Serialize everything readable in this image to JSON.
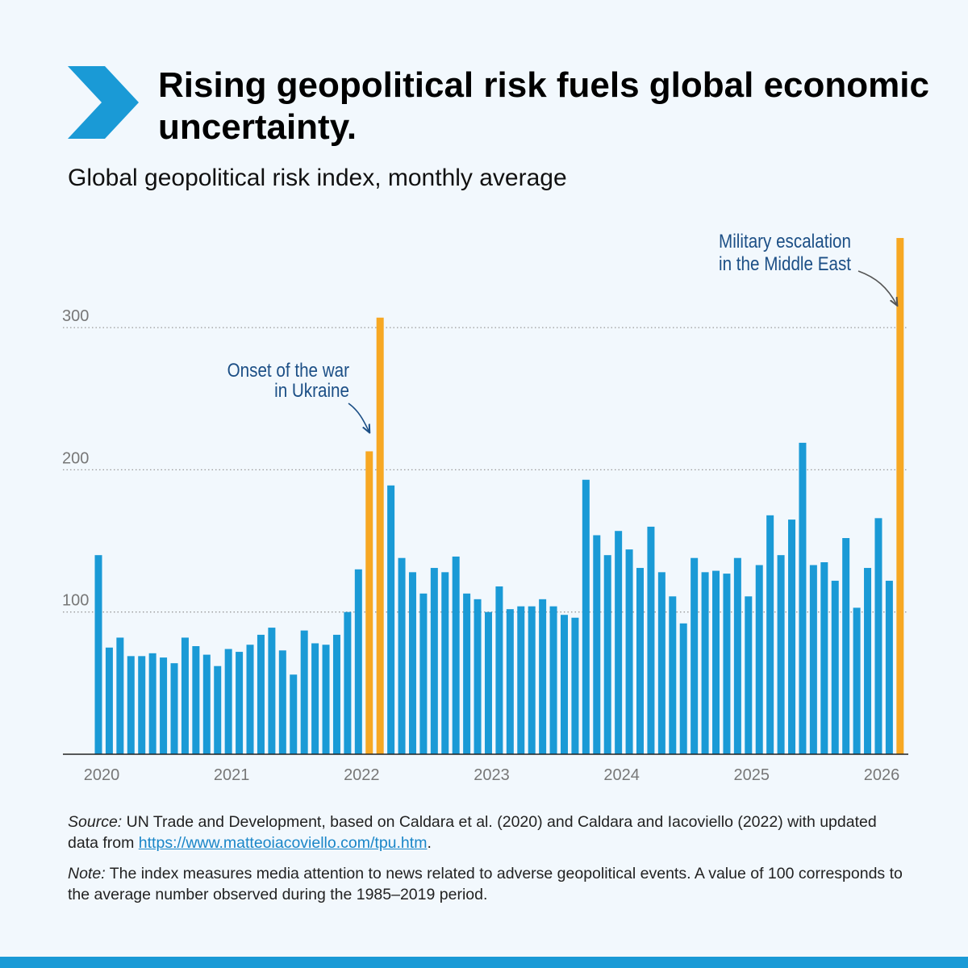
{
  "title": "Rising geopolitical risk fuels global economic uncertainty.",
  "subtitle": "Global geopolitical risk index, monthly average",
  "colors": {
    "bar": "#1a9ad6",
    "highlight": "#f7a823",
    "chevron": "#1a9ad6",
    "annotation": "#1c4f86"
  },
  "chart_data": {
    "type": "bar",
    "title": "Global geopolitical risk index, monthly average",
    "xlabel": "",
    "ylabel": "",
    "ylim": [
      0,
      380
    ],
    "yticks": [
      100,
      200,
      300
    ],
    "grid": "dotted horizontal",
    "x_tick_labels": [
      "2020",
      "2021",
      "2022",
      "2023",
      "2024",
      "2025",
      "2026"
    ],
    "start": "2020-01",
    "values": [
      140,
      75,
      82,
      69,
      69,
      71,
      68,
      64,
      82,
      76,
      70,
      62,
      74,
      72,
      77,
      84,
      89,
      73,
      56,
      87,
      78,
      77,
      84,
      100,
      130,
      213,
      307,
      189,
      138,
      128,
      113,
      131,
      128,
      139,
      113,
      109,
      100,
      118,
      102,
      104,
      104,
      109,
      104,
      98,
      96,
      193,
      154,
      140,
      157,
      144,
      131,
      160,
      128,
      111,
      92,
      138,
      128,
      129,
      127,
      138,
      111,
      133,
      168,
      140,
      165,
      219,
      133,
      135,
      122,
      152,
      103,
      131,
      166,
      122,
      363
    ],
    "highlighted_indices": [
      25,
      26,
      74
    ],
    "annotations": [
      {
        "lines": [
          "Onset of the war",
          "in Ukraine"
        ],
        "target_index": 25
      },
      {
        "lines": [
          "Military escalation",
          "in the Middle East"
        ],
        "target_index": 74
      }
    ]
  },
  "footer": {
    "source_label": "Source:",
    "source_text": "UN Trade and Development, based on Caldara et al. (2020) and Caldara and Iacoviello (2022) with updated data from",
    "source_link": "https://www.matteoiacoviello.com/tpu.htm",
    "source_end": ".",
    "note_label": "Note:",
    "note_text": "The index measures media attention to news related to adverse geopolitical events. A value of 100 corresponds to the average number observed during the 1985–2019 period."
  }
}
